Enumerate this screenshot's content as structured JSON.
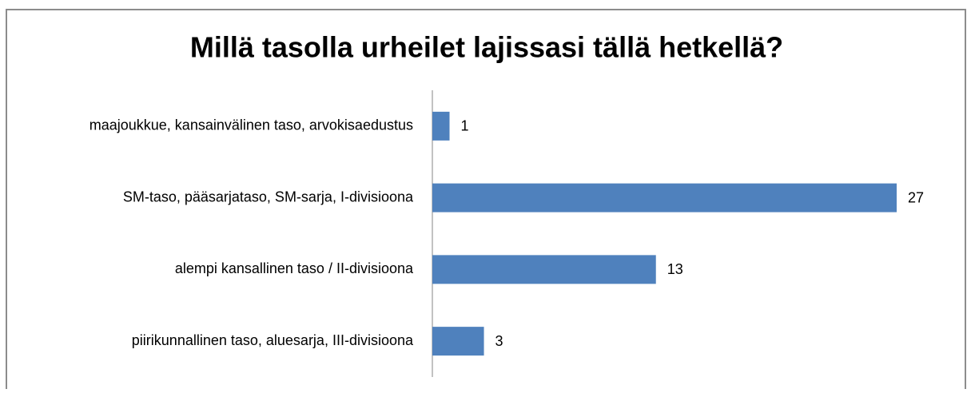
{
  "chart_data": {
    "type": "bar",
    "orientation": "horizontal",
    "title": "Millä tasolla urheilet lajissasi tällä hetkellä?",
    "categories": [
      "maajoukkue, kansainvälinen taso, arvokisaedustus",
      "SM-taso, pääsarjataso, SM-sarja, I-divisioona",
      "alempi kansallinen taso / II-divisioona",
      "piirikunnallinen taso, aluesarja, III-divisioona"
    ],
    "values": [
      1,
      27,
      13,
      3
    ],
    "color": "#4f81bd"
  }
}
